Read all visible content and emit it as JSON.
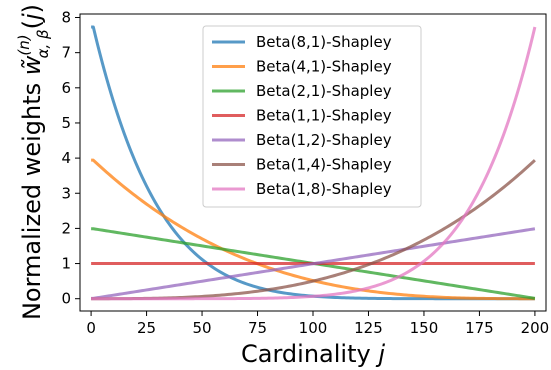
{
  "chart_data": {
    "type": "line",
    "xlabel": "Cardinality j",
    "ylabel": "Normalized weights w̃α,β(n)(j)",
    "xlim": [
      -5,
      205
    ],
    "ylim": [
      -0.35,
      8.1
    ],
    "xticks": [
      0,
      25,
      50,
      75,
      100,
      125,
      150,
      175,
      200
    ],
    "yticks": [
      0,
      1,
      2,
      3,
      4,
      5,
      6,
      7,
      8
    ],
    "n": 200,
    "legend_position": "upper center",
    "series": [
      {
        "name": "Beta(8,1)-Shapley",
        "alpha": 8,
        "beta": 1,
        "color": "#1f77b4"
      },
      {
        "name": "Beta(4,1)-Shapley",
        "alpha": 4,
        "beta": 1,
        "color": "#ff7f0e"
      },
      {
        "name": "Beta(2,1)-Shapley",
        "alpha": 2,
        "beta": 1,
        "color": "#2ca02c"
      },
      {
        "name": "Beta(1,1)-Shapley",
        "alpha": 1,
        "beta": 1,
        "color": "#d62728"
      },
      {
        "name": "Beta(1,2)-Shapley",
        "alpha": 1,
        "beta": 2,
        "color": "#9467bd"
      },
      {
        "name": "Beta(1,4)-Shapley",
        "alpha": 1,
        "beta": 4,
        "color": "#8c564b"
      },
      {
        "name": "Beta(1,8)-Shapley",
        "alpha": 1,
        "beta": 8,
        "color": "#e377c2"
      }
    ]
  }
}
